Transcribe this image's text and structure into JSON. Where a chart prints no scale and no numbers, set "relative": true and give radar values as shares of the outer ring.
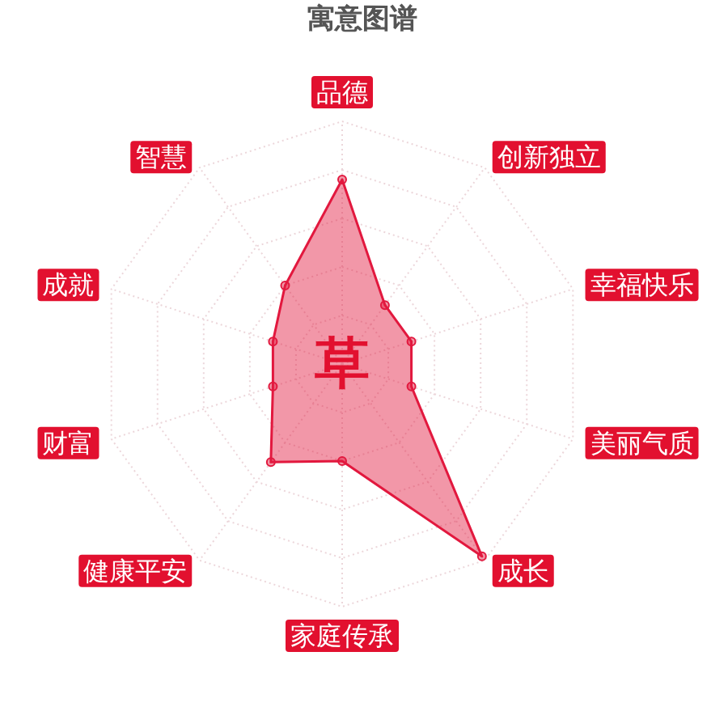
{
  "chart_data": {
    "type": "radar",
    "title": "寓意图谱",
    "categories": [
      "品德",
      "创新独立",
      "幸福快乐",
      "美丽气质",
      "成长",
      "家庭传承",
      "健康平安",
      "财富",
      "成就",
      "智慧"
    ],
    "series": [
      {
        "color": "#e2183e",
        "values": [
          0.76,
          0.3,
          0.3,
          0.3,
          0.98,
          0.4,
          0.5,
          0.3,
          0.3,
          0.4
        ]
      }
    ],
    "relative": true,
    "grid": true,
    "marker": "circle",
    "annotations": [
      "草"
    ]
  }
}
